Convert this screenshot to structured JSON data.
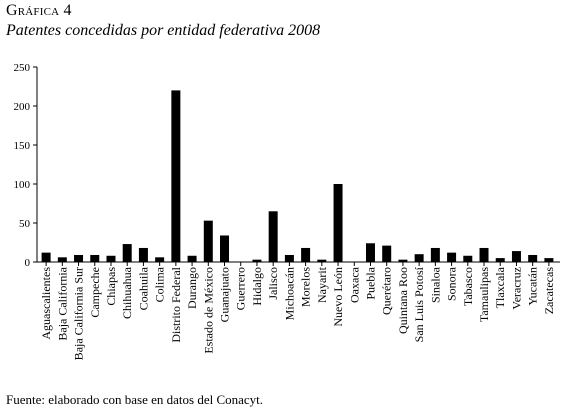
{
  "figure_label": "Gráfica 4",
  "source_note": "Fuente: elaborado con base en datos del Conacyt.",
  "colors": {
    "bar": "#000000",
    "axis": "#000000",
    "background": "#ffffff"
  },
  "chart_data": {
    "type": "bar",
    "title": "Patentes concedidas por entidad federativa 2008",
    "xlabel": "",
    "ylabel": "",
    "ylim": [
      0,
      250
    ],
    "yticks": [
      0,
      50,
      100,
      150,
      200,
      250
    ],
    "grid": false,
    "legend": "none",
    "categories": [
      "Aguascalientes",
      "Baja California",
      "Baja California Sur",
      "Campeche",
      "Chiapas",
      "Chihuahua",
      "Coahuila",
      "Colima",
      "Distrito Federal",
      "Durango",
      "Estado de México",
      "Guanajuato",
      "Guerrero",
      "Hidalgo",
      "Jalisco",
      "Michoacán",
      "Morelos",
      "Nayarit",
      "Nuevo León",
      "Oaxaca",
      "Puebla",
      "Querétaro",
      "Quintana Roo",
      "San Luis Potosí",
      "Sinaloa",
      "Sonora",
      "Tabasco",
      "Tamaulipas",
      "Tlaxcala",
      "Veracruz",
      "Yucatán",
      "Zacatecas"
    ],
    "values": [
      12,
      6,
      9,
      9,
      8,
      23,
      18,
      6,
      220,
      8,
      53,
      34,
      0,
      3,
      65,
      9,
      18,
      3,
      100,
      0,
      24,
      21,
      3,
      10,
      18,
      12,
      8,
      18,
      5,
      14,
      9,
      5
    ]
  }
}
